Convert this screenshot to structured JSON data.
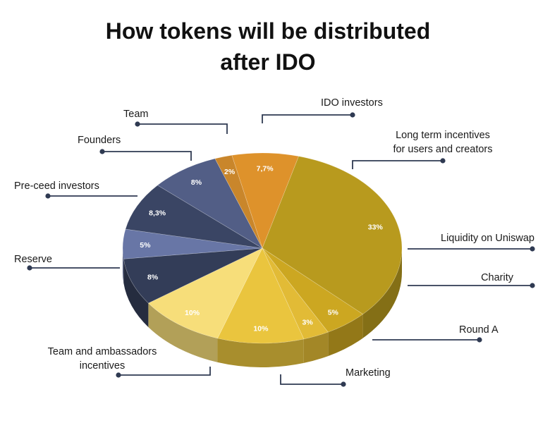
{
  "chart_data": {
    "type": "pie",
    "title_lines": [
      "How tokens will be distributed",
      "after IDO"
    ],
    "slices": [
      {
        "label": "IDO investors",
        "value_label": "7,7%",
        "value": 7.7,
        "color": "#DE922B"
      },
      {
        "label": "Long term incentives for users and creators",
        "label_lines": [
          "Long term incentives",
          "for users and creators"
        ],
        "value_label": "33%",
        "value": 33,
        "color": "#B89A1E"
      },
      {
        "label": "Liquidity on Uniswap",
        "value_label": "5%",
        "value": 5,
        "color": "#CCA721"
      },
      {
        "label": "Charity",
        "value_label": "3%",
        "value": 3,
        "color": "#E2BB36"
      },
      {
        "label": "Round A",
        "value_label": "10%",
        "value": 10,
        "color": "#EAC53E"
      },
      {
        "label": "Marketing",
        "value_label": "10%",
        "value": 10,
        "color": "#F7DE7A"
      },
      {
        "label": "Team and ambassadors incentives",
        "label_lines": [
          "Team and ambassadors",
          "incentives"
        ],
        "value_label": "8%",
        "value": 8,
        "color": "#333D58"
      },
      {
        "label": "Reserve",
        "value_label": "5%",
        "value": 5,
        "color": "#6876A6"
      },
      {
        "label": "Pre-ceed investors",
        "value_label": "8,3%",
        "value": 8.3,
        "color": "#3A4564"
      },
      {
        "label": "Founders",
        "value_label": "8%",
        "value": 8,
        "color": "#525E86"
      },
      {
        "label": "Team",
        "value_label": "2%",
        "value": 2,
        "color": "#C9862B"
      }
    ]
  }
}
